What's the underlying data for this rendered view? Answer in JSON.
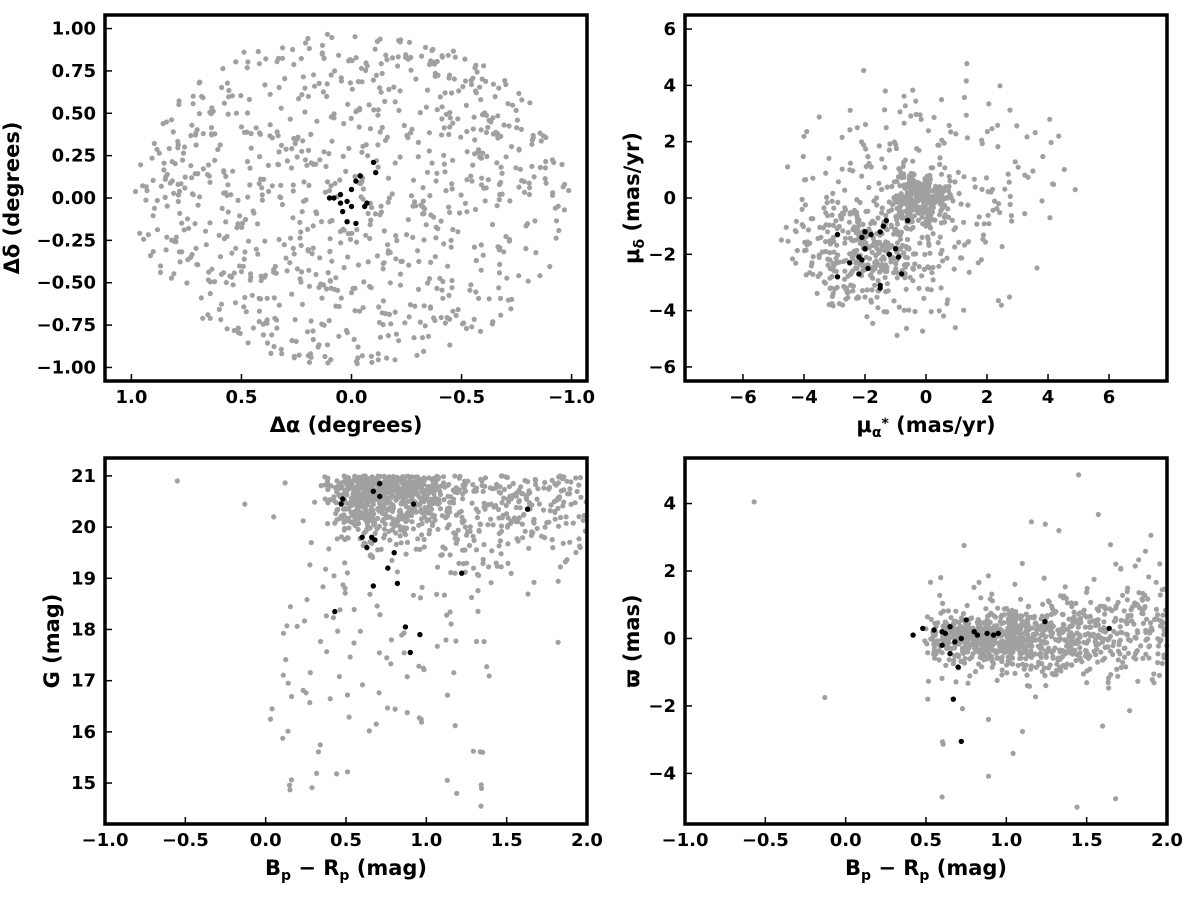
{
  "colors": {
    "field": "#a0a0a0",
    "member": "#000000",
    "frame": "#000000"
  },
  "chart_data": [
    {
      "type": "scatter",
      "xlabel": "Δα (degrees)",
      "ylabel": "Δδ (degrees)",
      "xlim": [
        1.12,
        -1.07
      ],
      "ylim": [
        -1.08,
        1.08
      ],
      "xticks": [
        1.0,
        0.5,
        0.0,
        -0.5,
        -1.0
      ],
      "xtick_labels": [
        "1.0",
        "0.5",
        "0.0",
        "−0.5",
        "−1.0"
      ],
      "yticks": [
        1.0,
        0.75,
        0.5,
        0.25,
        0.0,
        -0.25,
        -0.5,
        -0.75,
        -1.0
      ],
      "ytick_labels": [
        "1.00",
        "0.75",
        "0.50",
        "0.25",
        "0.00",
        "−0.25",
        "−0.50",
        "−0.75",
        "−1.00"
      ],
      "series": [
        {
          "role": "field",
          "count": 900,
          "distribution": "uniform disk",
          "center": [
            0.0,
            0.0
          ],
          "radius": 0.99
        },
        {
          "role": "member",
          "points": [
            [
              0.05,
              0.02
            ],
            [
              0.0,
              0.05
            ],
            [
              -0.02,
              0.1
            ],
            [
              -0.04,
              0.13
            ],
            [
              -0.1,
              0.21
            ],
            [
              -0.11,
              0.15
            ],
            [
              0.02,
              -0.02
            ],
            [
              0.0,
              -0.05
            ],
            [
              0.04,
              -0.08
            ],
            [
              0.02,
              -0.14
            ],
            [
              -0.02,
              -0.15
            ],
            [
              -0.06,
              -0.05
            ],
            [
              -0.07,
              -0.03
            ],
            [
              0.1,
              0.0
            ],
            [
              0.08,
              0.0
            ],
            [
              0.05,
              -0.03
            ]
          ]
        }
      ]
    },
    {
      "type": "scatter",
      "xlabel": "μ_α* (mas/yr)",
      "ylabel": "μ_δ (mas/yr)",
      "xlim": [
        -7.9,
        7.9
      ],
      "ylim": [
        -6.5,
        6.5
      ],
      "xticks": [
        -6,
        -4,
        -2,
        0,
        2,
        4,
        6
      ],
      "xtick_labels": [
        "−6",
        "−4",
        "−2",
        "0",
        "2",
        "4",
        "6"
      ],
      "yticks": [
        -6,
        -4,
        -2,
        0,
        2,
        4,
        6
      ],
      "ytick_labels": [
        "−6",
        "−4",
        "−2",
        "0",
        "2",
        "4",
        "6"
      ],
      "series": [
        {
          "role": "field",
          "count": 850,
          "components": [
            {
              "center": [
                -0.2,
                0.0
              ],
              "spread": [
                0.5,
                0.5
              ],
              "weight": 0.3
            },
            {
              "center": [
                -2.0,
                -2.0
              ],
              "spread": [
                1.3,
                1.1
              ],
              "weight": 0.45
            },
            {
              "center": [
                0.0,
                0.0
              ],
              "spread": [
                2.2,
                2.0
              ],
              "weight": 0.25
            }
          ],
          "ylim_clip": [
            -4.9,
            4.9
          ]
        },
        {
          "role": "member",
          "points": [
            [
              -2.9,
              -1.3
            ],
            [
              -2.9,
              -2.8
            ],
            [
              -2.5,
              -2.3
            ],
            [
              -2.2,
              -2.1
            ],
            [
              -2.1,
              -2.2
            ],
            [
              -2.2,
              -2.7
            ],
            [
              -2.0,
              -1.8
            ],
            [
              -1.9,
              -2.5
            ],
            [
              -2.1,
              -1.4
            ],
            [
              -2.0,
              -1.2
            ],
            [
              -1.8,
              -1.3
            ],
            [
              -1.5,
              -1.2
            ],
            [
              -1.4,
              -1.0
            ],
            [
              -1.3,
              -0.8
            ],
            [
              -1.5,
              -3.1
            ],
            [
              -1.5,
              -3.2
            ],
            [
              -1.2,
              -2.0
            ],
            [
              -1.0,
              -1.8
            ],
            [
              -0.9,
              -2.1
            ],
            [
              -0.8,
              -2.7
            ],
            [
              -0.6,
              -0.8
            ]
          ]
        }
      ]
    },
    {
      "type": "scatter",
      "xlabel": "B_p − R_p (mag)",
      "ylabel": "G (mag)",
      "xlim": [
        -1.0,
        2.0
      ],
      "ylim": [
        14.2,
        21.35
      ],
      "xticks": [
        -1.0,
        -0.5,
        0.0,
        0.5,
        1.0,
        1.5,
        2.0
      ],
      "xtick_labels": [
        "−1.0",
        "−0.5",
        "0.0",
        "0.5",
        "1.0",
        "1.5",
        "2.0"
      ],
      "yticks": [
        15,
        16,
        17,
        18,
        19,
        20,
        21
      ],
      "ytick_labels": [
        "15",
        "16",
        "17",
        "18",
        "19",
        "20",
        "21"
      ],
      "series": [
        {
          "role": "field",
          "count": 1000,
          "note": "faint field stars concentrated near G≈20-21, Bp-Rp≈0.5-2.0, sparse tail to brighter magnitudes"
        },
        {
          "role": "member",
          "points": [
            [
              0.48,
              20.55
            ],
            [
              0.47,
              20.45
            ],
            [
              0.67,
              20.7
            ],
            [
              0.71,
              20.85
            ],
            [
              0.71,
              20.6
            ],
            [
              0.92,
              20.45
            ],
            [
              1.63,
              20.35
            ],
            [
              0.6,
              19.8
            ],
            [
              0.66,
              19.8
            ],
            [
              0.68,
              19.75
            ],
            [
              0.63,
              19.6
            ],
            [
              0.8,
              19.5
            ],
            [
              0.76,
              19.2
            ],
            [
              1.22,
              19.1
            ],
            [
              0.82,
              18.9
            ],
            [
              0.67,
              18.85
            ],
            [
              0.43,
              18.35
            ],
            [
              0.87,
              18.05
            ],
            [
              0.96,
              17.9
            ],
            [
              0.9,
              17.55
            ]
          ]
        }
      ]
    },
    {
      "type": "scatter",
      "xlabel": "B_p − R_p (mag)",
      "ylabel": "ϖ (mas)",
      "xlim": [
        -1.0,
        2.0
      ],
      "ylim": [
        -5.5,
        5.35
      ],
      "xticks": [
        -1.0,
        -0.5,
        0.0,
        0.5,
        1.0,
        1.5,
        2.0
      ],
      "xtick_labels": [
        "−1.0",
        "−0.5",
        "0.0",
        "0.5",
        "1.0",
        "1.5",
        "2.0"
      ],
      "yticks": [
        -4,
        -2,
        0,
        2,
        4
      ],
      "ytick_labels": [
        "−4",
        "−2",
        "0",
        "2",
        "4"
      ],
      "series": [
        {
          "role": "field",
          "count": 1000,
          "note": "parallaxes centred near 0 mas, scatter growing for redder colours"
        },
        {
          "role": "member",
          "points": [
            [
              0.42,
              0.1
            ],
            [
              0.48,
              0.3
            ],
            [
              0.55,
              0.25
            ],
            [
              0.6,
              0.2
            ],
            [
              0.62,
              0.15
            ],
            [
              0.65,
              0.35
            ],
            [
              0.68,
              -0.1
            ],
            [
              0.6,
              -0.2
            ],
            [
              0.65,
              -0.45
            ],
            [
              0.72,
              0.0
            ],
            [
              0.75,
              0.55
            ],
            [
              0.8,
              0.2
            ],
            [
              0.82,
              0.1
            ],
            [
              0.88,
              0.15
            ],
            [
              0.92,
              0.1
            ],
            [
              0.95,
              0.15
            ],
            [
              1.24,
              0.5
            ],
            [
              1.64,
              0.3
            ],
            [
              0.7,
              -0.85
            ],
            [
              0.67,
              -1.8
            ],
            [
              0.72,
              -3.05
            ]
          ]
        }
      ]
    }
  ]
}
